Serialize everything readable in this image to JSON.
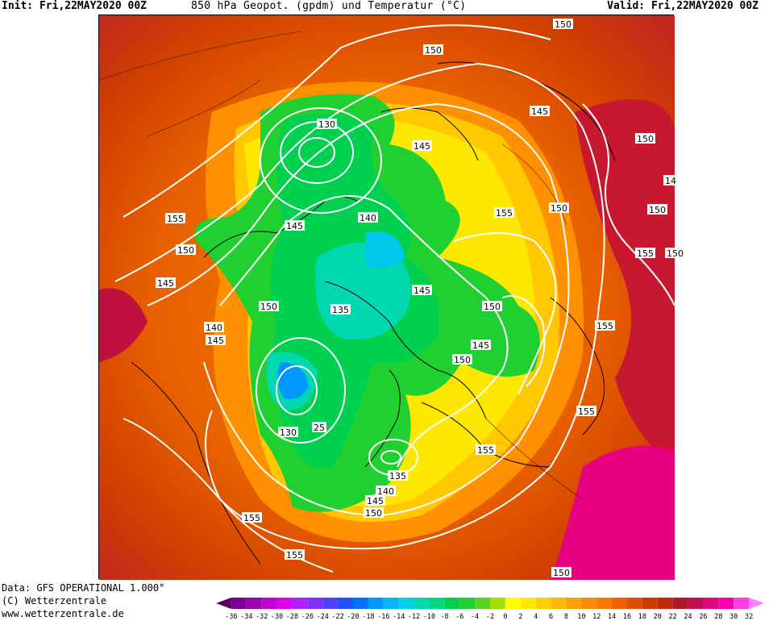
{
  "header": {
    "init": "Init: Fri,22MAY2020 00Z",
    "title": "850 hPa Geopot. (gpdm) und Temperatur (°C)",
    "valid": "Valid: Fri,22MAY2020 00Z"
  },
  "footer": {
    "data": "Data: GFS OPERATIONAL 1.000°",
    "copyright": "(C) Wetterzentrale",
    "url": "www.wetterzentrale.de"
  },
  "legend": {
    "ticks": [
      "-36",
      "-34",
      "-32",
      "-30",
      "-28",
      "-26",
      "-24",
      "-22",
      "-20",
      "-18",
      "-16",
      "-14",
      "-12",
      "-10",
      "-8",
      "-6",
      "-4",
      "-2",
      "0",
      "2",
      "4",
      "6",
      "8",
      "10",
      "12",
      "14",
      "16",
      "18",
      "20",
      "22",
      "24",
      "26",
      "28",
      "30",
      "32"
    ],
    "colors": [
      "#5a0060",
      "#7a0090",
      "#9a00b0",
      "#c000d0",
      "#e000e8",
      "#b020ff",
      "#8030ff",
      "#5040ff",
      "#2050ff",
      "#0070ff",
      "#0098ff",
      "#00b8ff",
      "#00d0e8",
      "#00d8b0",
      "#00d880",
      "#00d050",
      "#20d030",
      "#60d020",
      "#a0e000",
      "#ffff00",
      "#ffe800",
      "#ffd000",
      "#ffb800",
      "#ffa000",
      "#ff8c00",
      "#f87800",
      "#f06000",
      "#e04c00",
      "#d03800",
      "#c02810",
      "#b01830",
      "#c01050",
      "#e00880",
      "#ff00b0",
      "#ff40e0",
      "#ff80ff"
    ]
  },
  "contour_labels": [
    {
      "text": "150"
    },
    {
      "text": "150"
    },
    {
      "text": "130"
    },
    {
      "text": "145"
    },
    {
      "text": "145"
    },
    {
      "text": "150"
    },
    {
      "text": "150"
    },
    {
      "text": "14"
    },
    {
      "text": "155"
    },
    {
      "text": "150"
    },
    {
      "text": "155"
    },
    {
      "text": "145"
    },
    {
      "text": "140"
    },
    {
      "text": "155"
    },
    {
      "text": "150"
    },
    {
      "text": "145"
    },
    {
      "text": "145"
    },
    {
      "text": "150"
    },
    {
      "text": "150"
    },
    {
      "text": "135"
    },
    {
      "text": "150"
    },
    {
      "text": "140"
    },
    {
      "text": "145"
    },
    {
      "text": "155"
    },
    {
      "text": "145"
    },
    {
      "text": "150"
    },
    {
      "text": "155"
    },
    {
      "text": "130"
    },
    {
      "text": "25"
    },
    {
      "text": "155"
    },
    {
      "text": "135"
    },
    {
      "text": "140"
    },
    {
      "text": "145"
    },
    {
      "text": "150"
    },
    {
      "text": "155"
    },
    {
      "text": "155"
    },
    {
      "text": "150"
    }
  ]
}
